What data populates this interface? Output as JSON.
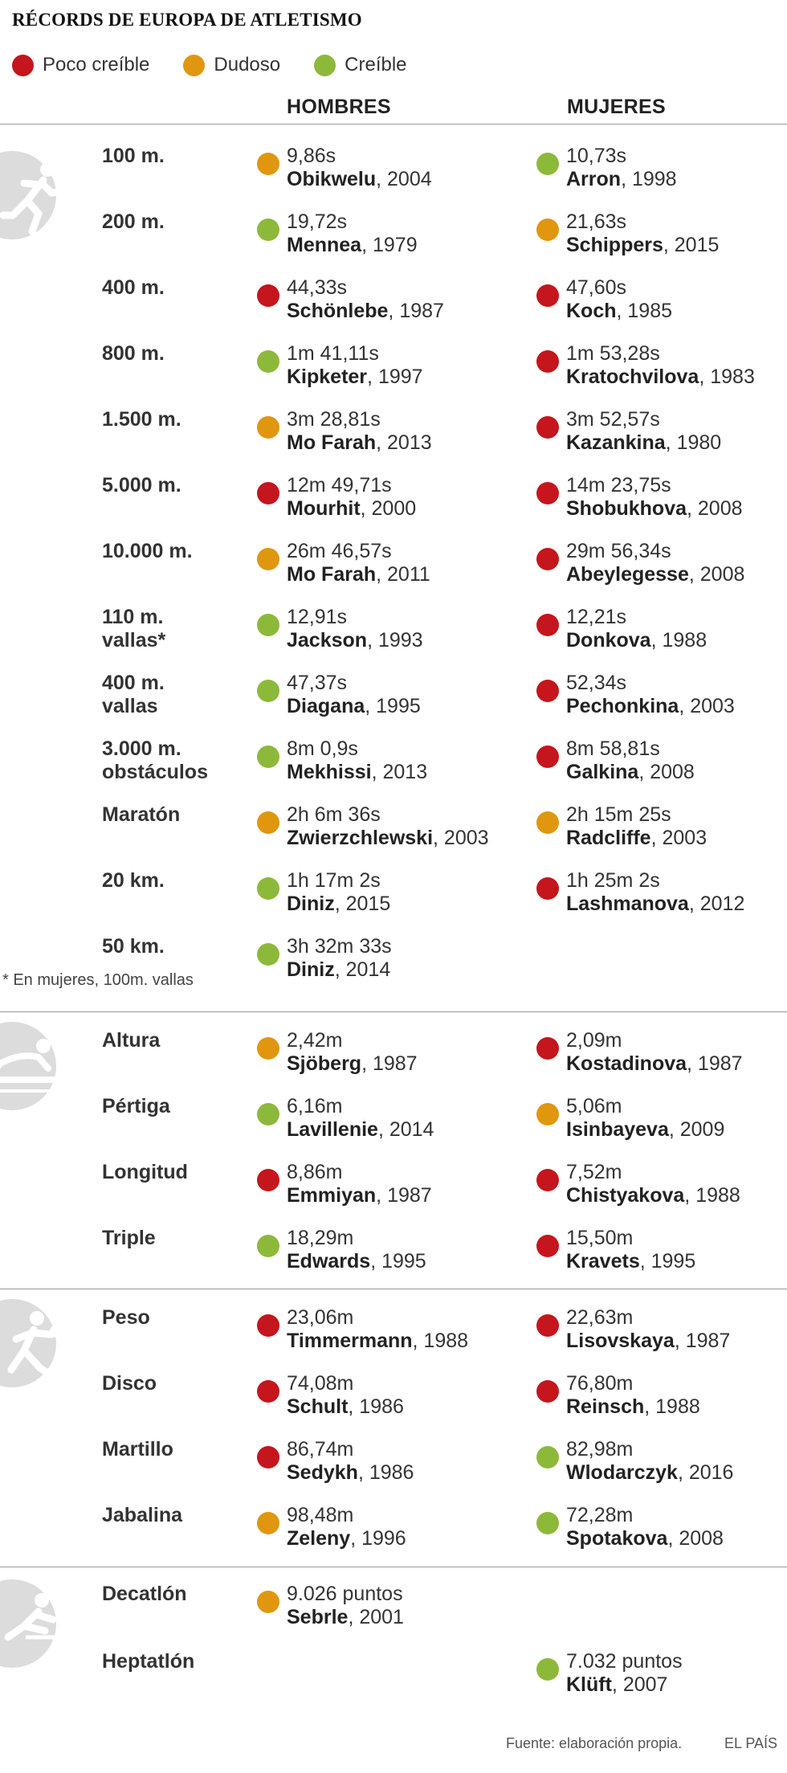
{
  "title": "RÉCORDS DE EUROPA DE ATLETISMO",
  "colors": {
    "poco": "#c4161c",
    "dudoso": "#e0970f",
    "creible": "#8db93b"
  },
  "legend": [
    {
      "label": "Poco creíble",
      "status": "poco"
    },
    {
      "label": "Dudoso",
      "status": "dudoso"
    },
    {
      "label": "Creíble",
      "status": "creible"
    }
  ],
  "headers": {
    "men": "HOMBRES",
    "women": "MUJERES"
  },
  "icons": [
    "runner-icon",
    "jumper-icon",
    "thrower-icon",
    "hurdler-icon"
  ],
  "rows": [
    {
      "event": "100 m.",
      "men": {
        "mark": "9,86s",
        "name": "Obikwelu",
        "year": ", 2004",
        "status": "dudoso"
      },
      "women": {
        "mark": "10,73s",
        "name": "Arron",
        "year": ", 1998",
        "status": "creible"
      }
    },
    {
      "event": "200 m.",
      "men": {
        "mark": "19,72s",
        "name": "Mennea",
        "year": ", 1979",
        "status": "creible"
      },
      "women": {
        "mark": "21,63s",
        "name": "Schippers",
        "year": ", 2015",
        "status": "dudoso"
      }
    },
    {
      "event": "400 m.",
      "men": {
        "mark": "44,33s",
        "name": "Schönlebe",
        "year": ", 1987",
        "status": "poco"
      },
      "women": {
        "mark": "47,60s",
        "name": "Koch",
        "year": ", 1985",
        "status": "poco"
      }
    },
    {
      "event": "800 m.",
      "men": {
        "mark": "1m 41,11s",
        "name": "Kipketer",
        "year": ", 1997",
        "status": "creible"
      },
      "women": {
        "mark": "1m 53,28s",
        "name": "Kratochvilova",
        "year": ", 1983",
        "status": "poco"
      }
    },
    {
      "event": "1.500 m.",
      "men": {
        "mark": "3m 28,81s",
        "name": "Mo Farah",
        "year": ", 2013",
        "status": "dudoso"
      },
      "women": {
        "mark": "3m 52,57s",
        "name": "Kazankina",
        "year": ", 1980",
        "status": "poco"
      }
    },
    {
      "event": "5.000 m.",
      "men": {
        "mark": "12m 49,71s",
        "name": "Mourhit",
        "year": ", 2000",
        "status": "poco"
      },
      "women": {
        "mark": "14m 23,75s",
        "name": "Shobukhova",
        "year": ", 2008",
        "status": "poco"
      }
    },
    {
      "event": "10.000 m.",
      "men": {
        "mark": "26m 46,57s",
        "name": "Mo Farah",
        "year": ", 2011",
        "status": "dudoso"
      },
      "women": {
        "mark": "29m 56,34s",
        "name": "Abeylegesse",
        "year": ", 2008",
        "status": "poco"
      }
    },
    {
      "event": "110 m.\nvallas*",
      "men": {
        "mark": "12,91s",
        "name": "Jackson",
        "year": ", 1993",
        "status": "creible"
      },
      "women": {
        "mark": "12,21s",
        "name": "Donkova",
        "year": ", 1988",
        "status": "poco"
      }
    },
    {
      "event": "400 m.\nvallas",
      "men": {
        "mark": "47,37s",
        "name": "Diagana",
        "year": ", 1995",
        "status": "creible"
      },
      "women": {
        "mark": "52,34s",
        "name": "Pechonkina",
        "year": ", 2003",
        "status": "poco"
      }
    },
    {
      "event": "3.000 m.\nobstáculos",
      "men": {
        "mark": "8m 0,9s",
        "name": "Mekhissi",
        "year": ", 2013",
        "status": "creible"
      },
      "women": {
        "mark": "8m 58,81s",
        "name": "Galkina",
        "year": ", 2008",
        "status": "poco"
      }
    },
    {
      "event": "Maratón",
      "men": {
        "mark": "2h 6m 36s",
        "name": "Zwierzchlewski",
        "year": ", 2003",
        "status": "dudoso"
      },
      "women": {
        "mark": "2h 15m 25s",
        "name": "Radcliffe",
        "year": ", 2003",
        "status": "dudoso"
      }
    },
    {
      "event": "20 km.",
      "men": {
        "mark": "1h 17m 2s",
        "name": "Diniz",
        "year": ", 2015",
        "status": "creible"
      },
      "women": {
        "mark": "1h 25m 2s",
        "name": "Lashmanova",
        "year": ", 2012",
        "status": "poco"
      }
    },
    {
      "event": "50 km.",
      "men": {
        "mark": "3h 32m 33s",
        "name": "Diniz",
        "year": ", 2014",
        "status": "creible"
      }
    },
    {
      "event": "Altura",
      "men": {
        "mark": "2,42m",
        "name": "Sjöberg",
        "year": ", 1987",
        "status": "dudoso"
      },
      "women": {
        "mark": "2,09m",
        "name": "Kostadinova",
        "year": ", 1987",
        "status": "poco"
      }
    },
    {
      "event": "Pértiga",
      "men": {
        "mark": "6,16m",
        "name": "Lavillenie",
        "year": ", 2014",
        "status": "creible"
      },
      "women": {
        "mark": "5,06m",
        "name": "Isinbayeva",
        "year": ", 2009",
        "status": "dudoso"
      }
    },
    {
      "event": "Longitud",
      "men": {
        "mark": "8,86m",
        "name": "Emmiyan",
        "year": ", 1987",
        "status": "poco"
      },
      "women": {
        "mark": "7,52m",
        "name": "Chistyakova",
        "year": ", 1988",
        "status": "poco"
      }
    },
    {
      "event": "Triple",
      "men": {
        "mark": "18,29m",
        "name": "Edwards",
        "year": ", 1995",
        "status": "creible"
      },
      "women": {
        "mark": "15,50m",
        "name": "Kravets",
        "year": ", 1995",
        "status": "poco"
      }
    },
    {
      "event": "Peso",
      "men": {
        "mark": "23,06m",
        "name": "Timmermann",
        "year": ", 1988",
        "status": "poco"
      },
      "women": {
        "mark": "22,63m",
        "name": "Lisovskaya",
        "year": ", 1987",
        "status": "poco"
      }
    },
    {
      "event": "Disco",
      "men": {
        "mark": "74,08m",
        "name": "Schult",
        "year": ", 1986",
        "status": "poco"
      },
      "women": {
        "mark": "76,80m",
        "name": "Reinsch",
        "year": ", 1988",
        "status": "poco"
      }
    },
    {
      "event": "Martillo",
      "men": {
        "mark": "86,74m",
        "name": "Sedykh",
        "year": ", 1986",
        "status": "poco"
      },
      "women": {
        "mark": "82,98m",
        "name": "Wlodarczyk",
        "year": ", 2016",
        "status": "creible"
      }
    },
    {
      "event": "Jabalina",
      "men": {
        "mark": "98,48m",
        "name": "Zeleny",
        "year": ", 1996",
        "status": "dudoso"
      },
      "women": {
        "mark": "72,28m",
        "name": "Spotakova",
        "year": ", 2008",
        "status": "creible"
      }
    },
    {
      "event": "Decatlón",
      "men": {
        "mark": "9.026 puntos",
        "name": "Sebrle",
        "year": ", 2001",
        "status": "dudoso"
      }
    },
    {
      "event": "Heptatlón",
      "women": {
        "mark": "7.032 puntos",
        "name": "Klüft",
        "year": ", 2007",
        "status": "creible"
      }
    }
  ],
  "note": "* En mujeres, 100m. vallas",
  "footer": {
    "source": "Fuente: elaboración propia.",
    "brand": "EL PAÍS"
  }
}
